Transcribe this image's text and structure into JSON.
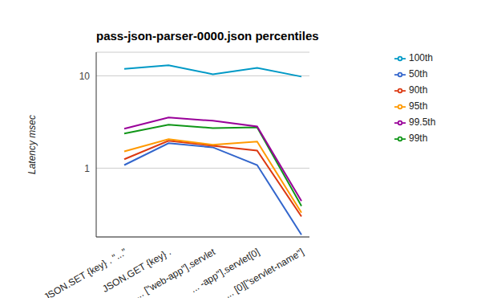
{
  "chart_data": {
    "type": "line",
    "title": "pass-json-parser-0000.json percentiles",
    "y_label": "Latency msec",
    "categories": [
      "JSON.SET {key} . \"...\"",
      "JSON.GET {key} .",
      "... [\"web-app\"].servlet",
      "... -app\"].servlet[0]",
      "... [0][\"servlet-name\"]"
    ],
    "series": [
      {
        "name": "50th",
        "color": "#3366cc",
        "values": [
          1.08,
          1.86,
          1.68,
          1.08,
          0.19
        ]
      },
      {
        "name": "90th",
        "color": "#dc3912",
        "values": [
          1.25,
          1.98,
          1.75,
          1.55,
          0.3
        ]
      },
      {
        "name": "95th",
        "color": "#ff9900",
        "values": [
          1.52,
          2.06,
          1.79,
          1.94,
          0.33
        ]
      },
      {
        "name": "99th",
        "color": "#109618",
        "values": [
          2.37,
          2.95,
          2.72,
          2.77,
          0.39
        ]
      },
      {
        "name": "99.5th",
        "color": "#990099",
        "values": [
          2.67,
          3.53,
          3.26,
          2.83,
          0.44
        ]
      },
      {
        "name": "100th",
        "color": "#0099c6",
        "values": [
          11.9,
          13,
          10.4,
          12.2,
          9.8
        ]
      }
    ],
    "ylim": [
      0.18,
      18
    ],
    "yticks": [
      1,
      10
    ],
    "log": "y",
    "grid": true,
    "legend": "right"
  }
}
